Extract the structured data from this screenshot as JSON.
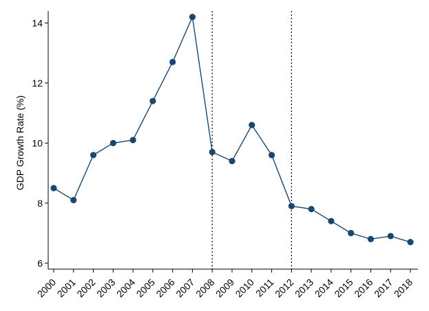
{
  "chart_data": {
    "type": "line",
    "xlabel": "",
    "ylabel": "GDP Growth Rate (%)",
    "ylim": [
      5.8,
      14.4
    ],
    "yticks": [
      6,
      8,
      10,
      12,
      14
    ],
    "x": [
      "2000",
      "2001",
      "2002",
      "2003",
      "2004",
      "2005",
      "2006",
      "2007",
      "2008",
      "2009",
      "2010",
      "2011",
      "2012",
      "2013",
      "2014",
      "2015",
      "2016",
      "2017",
      "2018"
    ],
    "series": [
      {
        "values": [
          8.5,
          8.1,
          9.6,
          10.0,
          10.1,
          11.4,
          12.7,
          14.2,
          9.7,
          9.4,
          10.6,
          9.6,
          7.9,
          7.8,
          7.4,
          7.0,
          6.8,
          6.9,
          6.7
        ],
        "color": "#1a476f"
      }
    ],
    "reference_lines_x": [
      "2008",
      "2012"
    ],
    "grid": false,
    "legend": "none"
  }
}
